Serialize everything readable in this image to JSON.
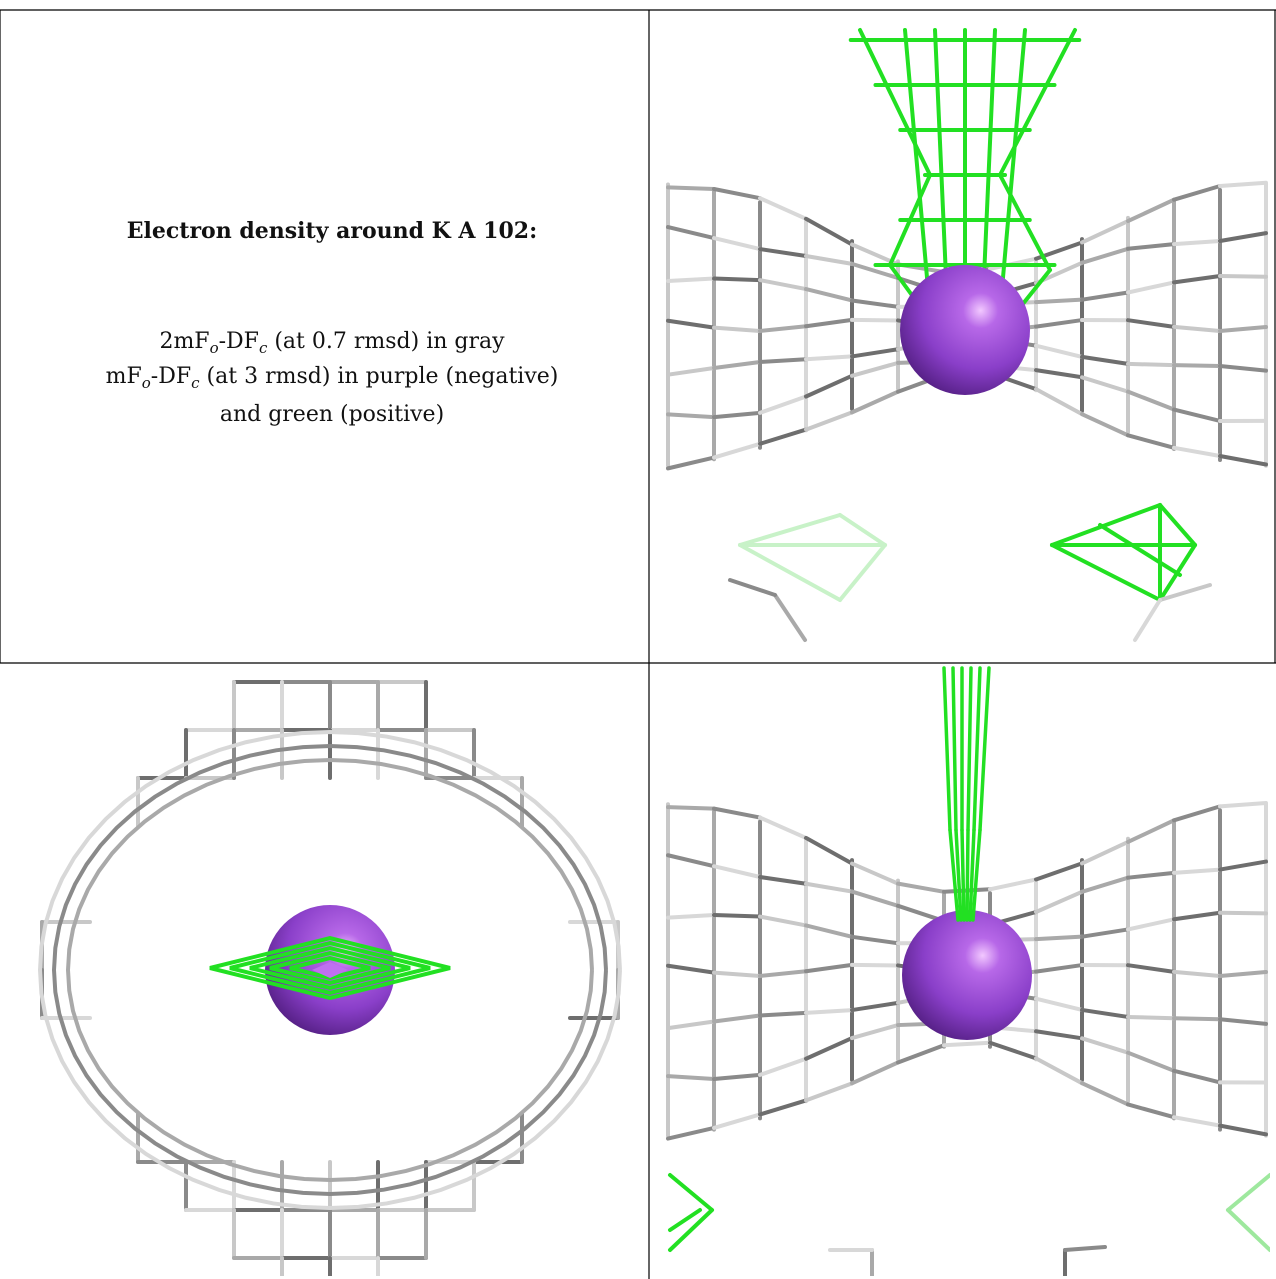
{
  "caption": {
    "title": "Electron density around K A 102:",
    "lines": [
      [
        "2mF",
        "o",
        "-DF",
        "c",
        " (at 0.7 rmsd) in gray"
      ],
      [
        "mF",
        "o",
        "-DF",
        "c",
        " (at 3 rmsd) in purple (negative)"
      ],
      [
        "and green (positive)"
      ]
    ]
  }
}
